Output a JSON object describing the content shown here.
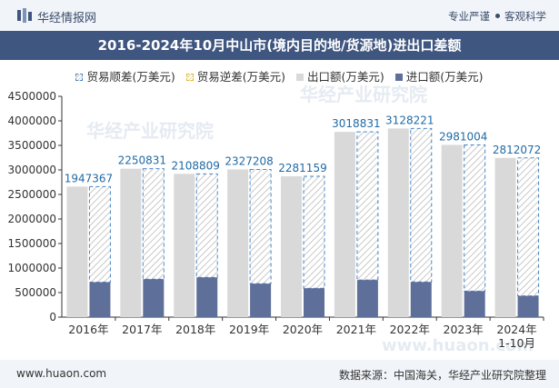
{
  "header": {
    "logo_text": "华经情报网",
    "slogan_left": "专业严谨",
    "slogan_right": "客观科学"
  },
  "watermark": {
    "text": "华经产业研究院",
    "url": "www.huaon.com"
  },
  "footer": {
    "website": "www.huaon.com",
    "source": "数据来源：中国海关，华经产业研究院整理"
  },
  "colors": {
    "brand": "#3f5680",
    "export_bar": "#d9d9d9",
    "import_bar": "#5e6f99",
    "surplus_outline": "#4a88c7",
    "surplus_label": "#1f6aa5",
    "deficit_outline": "#e0b830"
  },
  "chart_data": {
    "type": "bar",
    "title": "2016-2024年10月中山市(境内目的地/货源地)进出口差额",
    "categories": [
      "2016年",
      "2017年",
      "2018年",
      "2019年",
      "2020年",
      "2021年",
      "2022年",
      "2023年",
      "2024年\n1-10月"
    ],
    "series": [
      {
        "name": "贸易顺差(万美元)",
        "values": [
          1947367,
          2250831,
          2108809,
          2327208,
          2281159,
          3018831,
          3128221,
          2981004,
          2812072
        ]
      },
      {
        "name": "贸易逆差(万美元)",
        "values": [
          0,
          0,
          0,
          0,
          0,
          0,
          0,
          0,
          0
        ]
      },
      {
        "name": "出口额(万美元)",
        "values": [
          2660000,
          3025000,
          2920000,
          3010000,
          2870000,
          3775000,
          3845000,
          3510000,
          3245000
        ]
      },
      {
        "name": "进口额(万美元)",
        "values": [
          712633,
          774169,
          811191,
          682792,
          588841,
          756169,
          716779,
          528996,
          432928
        ]
      }
    ],
    "ylim": [
      0,
      4500000
    ],
    "yticks": [
      0,
      500000,
      1000000,
      1500000,
      2000000,
      2500000,
      3000000,
      3500000,
      4000000,
      4500000
    ],
    "legend_position": "top",
    "grid": false
  }
}
